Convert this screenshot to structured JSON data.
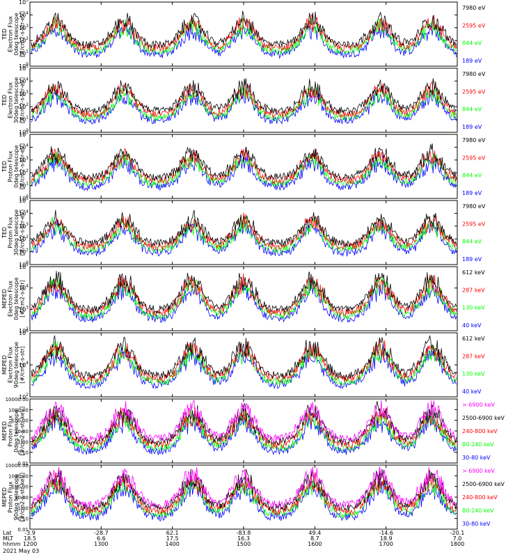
{
  "colors": {
    "black": "#000000",
    "red": "#ff0000",
    "green": "#00ff00",
    "blue": "#0000ff",
    "magenta": "#ff00ff"
  },
  "footer": {
    "rows": [
      {
        "label": "Lat",
        "values": [
          "-3.9",
          "-28.7",
          "62.1",
          "-83.8",
          "49.4",
          "-14.6",
          "-20.1"
        ]
      },
      {
        "label": "MLT",
        "values": [
          "18.5",
          "6.6",
          "17.5",
          "16.3",
          "8.7",
          "18.9",
          "7.0"
        ]
      },
      {
        "label": "hhmm",
        "values": [
          "1200",
          "1300",
          "1400",
          "1500",
          "1600",
          "1700",
          "1800"
        ]
      }
    ],
    "date": "2021 May 03"
  },
  "chart_data": [
    {
      "type": "line",
      "ylabel": [
        "TED",
        "Electron Flux",
        "0deg telescope",
        "[#/cm2-s-str-eV]"
      ],
      "yscale": "log",
      "ylim": [
        1,
        100000
      ],
      "yticks": [
        "10^0",
        "10^1",
        "10^2",
        "10^3",
        "10^4",
        "10^5"
      ],
      "series": [
        {
          "name": "7980 eV",
          "color": "#000000"
        },
        {
          "name": "2595 eV",
          "color": "#ff0000"
        },
        {
          "name": "844 eV",
          "color": "#00ff00"
        },
        {
          "name": "189 eV",
          "color": "#0000ff"
        }
      ]
    },
    {
      "type": "line",
      "ylabel": [
        "TED",
        "Electron Flux",
        "30deg telescope",
        "[#/cm2-s-str-eV]"
      ],
      "yscale": "log",
      "ylim": [
        1,
        100000
      ],
      "yticks": [
        "10^0",
        "10^1",
        "10^2",
        "10^3",
        "10^4",
        "10^5"
      ],
      "series": [
        {
          "name": "7980 eV",
          "color": "#000000"
        },
        {
          "name": "2595 eV",
          "color": "#ff0000"
        },
        {
          "name": "844 eV",
          "color": "#00ff00"
        },
        {
          "name": "189 eV",
          "color": "#0000ff"
        }
      ]
    },
    {
      "type": "line",
      "ylabel": [
        "TED",
        "Proton Flux",
        "0deg telescope",
        "[#/cm2-s-str-eV]"
      ],
      "yscale": "log",
      "ylim": [
        1,
        100000
      ],
      "yticks": [
        "10^0",
        "10^1",
        "10^2",
        "10^3",
        "10^4",
        "10^5"
      ],
      "series": [
        {
          "name": "7980 eV",
          "color": "#000000"
        },
        {
          "name": "2595 eV",
          "color": "#ff0000"
        },
        {
          "name": "844 eV",
          "color": "#00ff00"
        },
        {
          "name": "189 eV",
          "color": "#0000ff"
        }
      ]
    },
    {
      "type": "line",
      "ylabel": [
        "TED",
        "Proton Flux",
        "30deg telescope",
        "[#/cm2-s-str-eV]"
      ],
      "yscale": "log",
      "ylim": [
        1,
        100000
      ],
      "yticks": [
        "10^0",
        "10^1",
        "10^2",
        "10^3",
        "10^4",
        "10^5"
      ],
      "series": [
        {
          "name": "7980 eV",
          "color": "#000000"
        },
        {
          "name": "2595 eV",
          "color": "#ff0000"
        },
        {
          "name": "844 eV",
          "color": "#00ff00"
        },
        {
          "name": "189 eV",
          "color": "#0000ff"
        }
      ]
    },
    {
      "type": "line",
      "ylabel": [
        "MEPED",
        "Electron Flux",
        "0deg telescope",
        "[#/cm2-s-str]"
      ],
      "yscale": "log",
      "ylim": [
        100,
        100000
      ],
      "yticks": [
        "10^2",
        "10^3",
        "10^4",
        "10^5"
      ],
      "series": [
        {
          "name": "612 keV",
          "color": "#000000"
        },
        {
          "name": "287 keV",
          "color": "#ff0000"
        },
        {
          "name": "130 keV",
          "color": "#00ff00"
        },
        {
          "name": "40 keV",
          "color": "#0000ff"
        }
      ]
    },
    {
      "type": "line",
      "ylabel": [
        "MEPED",
        "Electron Flux",
        "90deg telescope",
        "[#/cm2-s-str]"
      ],
      "yscale": "log",
      "ylim": [
        100,
        1000000
      ],
      "yticks": [
        "10^2",
        "10^4",
        "10^6"
      ],
      "series": [
        {
          "name": "612 keV",
          "color": "#000000"
        },
        {
          "name": "287 keV",
          "color": "#ff0000"
        },
        {
          "name": "130 keV",
          "color": "#00ff00"
        },
        {
          "name": "40 keV",
          "color": "#0000ff"
        }
      ]
    },
    {
      "type": "line",
      "ylabel": [
        "MEPED",
        "Proton Flux",
        "0deg telescope",
        "[#/cm2-s-str-keV]"
      ],
      "yscale": "log",
      "ylim": [
        0.01,
        10000
      ],
      "yticks": [
        "0.01",
        "0.10",
        "1.00",
        "10.00",
        "100.00",
        "1000.00",
        "10000.00"
      ],
      "series": [
        {
          "name": "> 6900 keV",
          "color": "#ff00ff"
        },
        {
          "name": "2500-6900 keV",
          "color": "#000000"
        },
        {
          "name": "240-800 keV",
          "color": "#ff0000"
        },
        {
          "name": "80-240 keV",
          "color": "#00ff00"
        },
        {
          "name": "30-80 keV",
          "color": "#0000ff"
        }
      ]
    },
    {
      "type": "line",
      "ylabel": [
        "MEPED",
        "Proton Flux",
        "90deg telescope",
        "[#/cm2-s-str-keV]"
      ],
      "yscale": "log",
      "ylim": [
        0.01,
        10000
      ],
      "yticks": [
        "0.01",
        "0.10",
        "1.00",
        "10.00",
        "100.00",
        "1000.00",
        "10000.00"
      ],
      "series": [
        {
          "name": "> 6900 keV",
          "color": "#ff00ff"
        },
        {
          "name": "2500-6900 keV",
          "color": "#000000"
        },
        {
          "name": "240-800 keV",
          "color": "#ff0000"
        },
        {
          "name": "80-240 keV",
          "color": "#00ff00"
        },
        {
          "name": "30-80 keV",
          "color": "#0000ff"
        }
      ]
    }
  ]
}
